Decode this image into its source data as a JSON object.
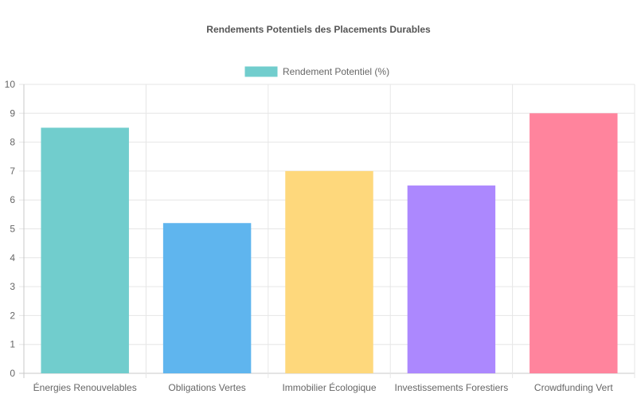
{
  "chart_data": {
    "type": "bar",
    "title": "Rendements Potentiels des Placements Durables",
    "xlabel": "",
    "ylabel": "",
    "categories": [
      "Énergies Renouvelables",
      "Obligations Vertes",
      "Immobilier Écologique",
      "Investissements Forestiers",
      "Crowdfunding Vert"
    ],
    "series": [
      {
        "name": "Rendement Potentiel (%)",
        "values": [
          8.5,
          5.2,
          7.0,
          6.5,
          9.0
        ],
        "colors": [
          "#71cdcd",
          "#5fb5ee",
          "#fed87c",
          "#ac88fe",
          "#ff849d"
        ]
      }
    ],
    "ylim": [
      0,
      10
    ],
    "yticks": [
      0,
      1,
      2,
      3,
      4,
      5,
      6,
      7,
      8,
      9,
      10
    ],
    "legend_position": "top",
    "grid": true
  }
}
